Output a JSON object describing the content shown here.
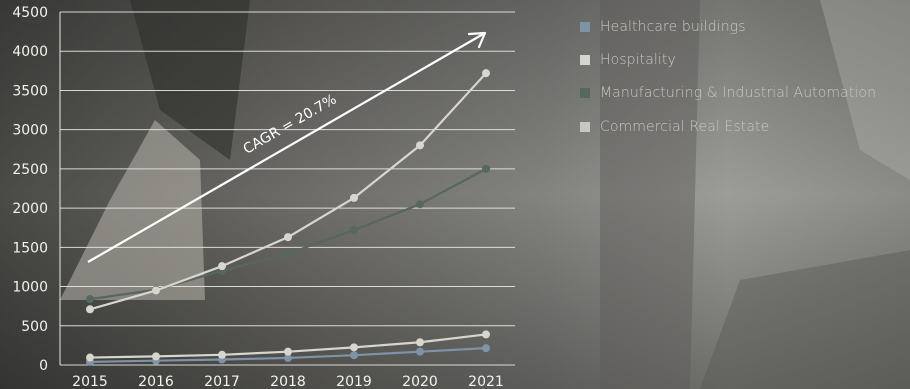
{
  "chart_data": {
    "type": "line",
    "categories": [
      "2015",
      "2016",
      "2017",
      "2018",
      "2019",
      "2020",
      "2021"
    ],
    "ylim": [
      0,
      4500
    ],
    "yticks": [
      0,
      500,
      1000,
      1500,
      2000,
      2500,
      3000,
      3500,
      4000,
      4500
    ],
    "grid": true,
    "legend_position": "top-right",
    "series": [
      {
        "name": "Healthcare buildings",
        "color": "#7e93a8",
        "values": [
          40,
          55,
          70,
          90,
          125,
          170,
          215
        ]
      },
      {
        "name": "Hospitality",
        "color": "#d6d6cf",
        "values": [
          95,
          110,
          130,
          170,
          225,
          290,
          390
        ]
      },
      {
        "name": "Manufacturing & Industrial Automation",
        "color": "#56675d",
        "values": [
          840,
          960,
          1200,
          1420,
          1720,
          2050,
          2500
        ]
      },
      {
        "name": "Commercial Real Estate",
        "color": "#d9d6cf",
        "values": [
          710,
          950,
          1260,
          1630,
          2130,
          2800,
          3720
        ]
      }
    ],
    "annotation": {
      "text": "CAGR = 20.7%",
      "color": "#ffffff"
    }
  }
}
